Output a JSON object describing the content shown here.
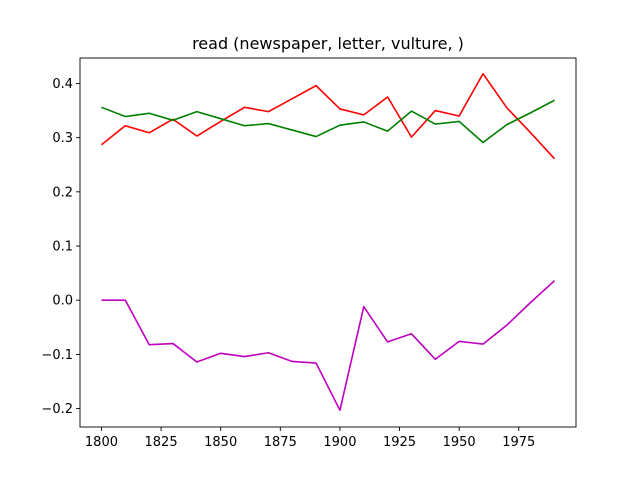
{
  "chart_data": {
    "type": "line",
    "title": "read (newspaper, letter, vulture, )",
    "xlabel": "",
    "ylabel": "",
    "x": [
      1800,
      1810,
      1820,
      1830,
      1840,
      1850,
      1860,
      1870,
      1880,
      1890,
      1900,
      1910,
      1920,
      1930,
      1940,
      1950,
      1960,
      1970,
      1980,
      1990
    ],
    "xlim": [
      1791,
      1999
    ],
    "ylim": [
      -0.234,
      0.447
    ],
    "xticks": [
      1800,
      1825,
      1850,
      1875,
      1900,
      1925,
      1950,
      1975
    ],
    "xtick_labels": [
      "1800",
      "1825",
      "1850",
      "1875",
      "1900",
      "1925",
      "1950",
      "1975"
    ],
    "yticks": [
      -0.2,
      -0.1,
      0.0,
      0.1,
      0.2,
      0.3,
      0.4
    ],
    "ytick_labels": [
      "−0.2",
      "−0.1",
      "0.0",
      "0.1",
      "0.2",
      "0.3",
      "0.4"
    ],
    "grid": false,
    "series": [
      {
        "color": "#ff0000",
        "values": [
          0.287,
          0.322,
          0.309,
          0.334,
          0.303,
          0.33,
          0.356,
          0.348,
          0.372,
          0.396,
          0.353,
          0.342,
          0.375,
          0.301,
          0.35,
          0.34,
          0.418,
          0.355,
          0.309,
          0.261
        ]
      },
      {
        "color": "#008000",
        "values": [
          0.356,
          0.339,
          0.345,
          0.332,
          0.348,
          0.335,
          0.322,
          0.326,
          0.314,
          0.302,
          0.323,
          0.329,
          0.312,
          0.349,
          0.325,
          0.33,
          0.291,
          0.324,
          0.346,
          0.369
        ]
      },
      {
        "color": "#bf00bf",
        "values": [
          0.0,
          0.0,
          -0.082,
          -0.08,
          -0.114,
          -0.098,
          -0.104,
          -0.097,
          -0.113,
          -0.116,
          -0.203,
          -0.012,
          -0.077,
          -0.062,
          -0.109,
          -0.076,
          -0.081,
          -0.046,
          -0.004,
          0.036
        ]
      }
    ]
  }
}
